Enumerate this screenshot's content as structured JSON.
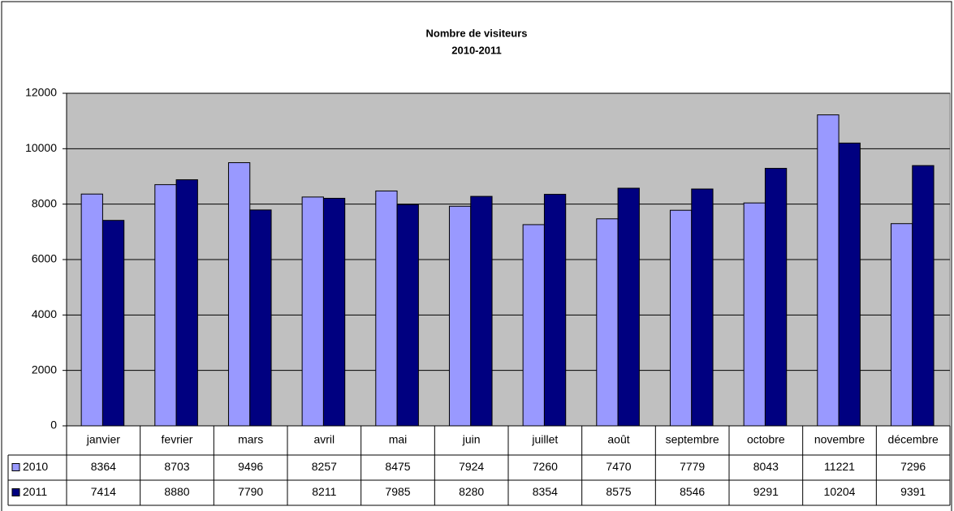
{
  "chart_data": {
    "type": "bar",
    "title": "Nombre de visiteurs",
    "subtitle": "2010-2011",
    "categories": [
      "janvier",
      "fevrier",
      "mars",
      "avril",
      "mai",
      "juin",
      "juillet",
      "août",
      "septembre",
      "octobre",
      "novembre",
      "décembre"
    ],
    "series": [
      {
        "name": "2010",
        "color": "#9999ff",
        "values": [
          8364,
          8703,
          9496,
          8257,
          8475,
          7924,
          7260,
          7470,
          7779,
          8043,
          11221,
          7296
        ]
      },
      {
        "name": "2011",
        "color": "#000080",
        "values": [
          7414,
          8880,
          7790,
          8211,
          7985,
          8280,
          8354,
          8575,
          8546,
          9291,
          10204,
          9391
        ]
      }
    ],
    "ylim": [
      0,
      12000
    ],
    "yticks": [
      0,
      2000,
      4000,
      6000,
      8000,
      10000,
      12000
    ],
    "grid": true,
    "data_table": true
  }
}
